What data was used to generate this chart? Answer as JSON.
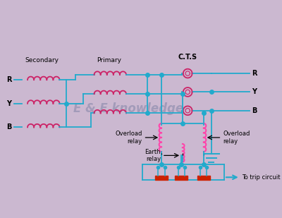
{
  "bg_color": "#cbb8d0",
  "line_color": "#22aacc",
  "coil_color": "#cc2266",
  "coil_color2": "#ff44aa",
  "text_color": "#000000",
  "watermark_text": "E & E knowledge",
  "watermark_color": "#8888aa",
  "labels": {
    "secondary": "Secondary",
    "primary": "Primary",
    "cts": "C.T.S",
    "R": "R",
    "Y": "Y",
    "B": "B",
    "overload_relay_left": "Overload\nrelay",
    "overload_relay_right": "Overload\nrelay",
    "earth_relay": "Earth\nrelay",
    "to_trip": "To trip circuit"
  }
}
